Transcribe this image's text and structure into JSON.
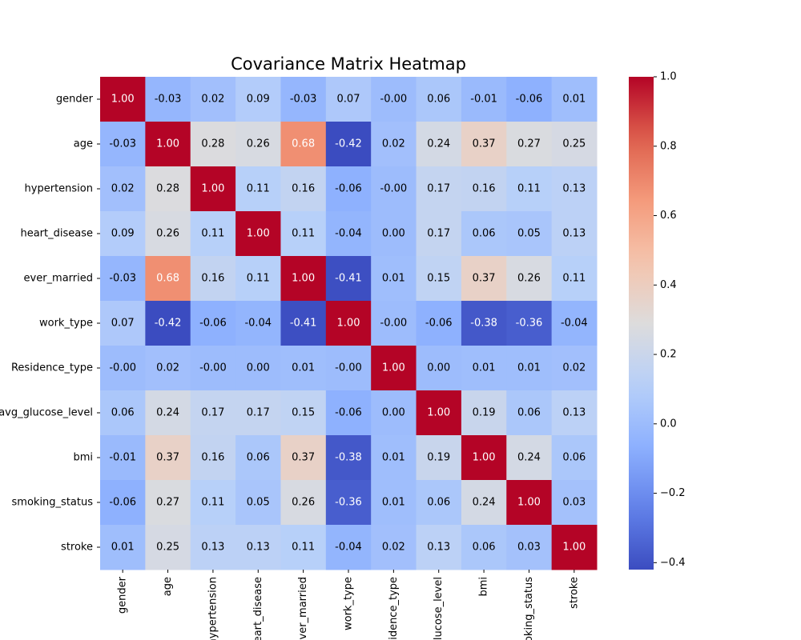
{
  "chart_data": {
    "type": "heatmap",
    "title": "Covariance Matrix Heatmap",
    "x_categories": [
      "gender",
      "age",
      "hypertension",
      "heart_disease",
      "ever_married",
      "work_type",
      "Residence_type",
      "avg_glucose_level",
      "bmi",
      "smoking_status",
      "stroke"
    ],
    "y_categories": [
      "gender",
      "age",
      "hypertension",
      "heart_disease",
      "ever_married",
      "work_type",
      "Residence_type",
      "avg_glucose_level",
      "bmi",
      "smoking_status",
      "stroke"
    ],
    "values": [
      [
        1.0,
        -0.03,
        0.02,
        0.09,
        -0.03,
        0.07,
        0,
        0.06,
        -0.01,
        -0.06,
        0.01
      ],
      [
        -0.03,
        1.0,
        0.28,
        0.26,
        0.68,
        -0.42,
        0.02,
        0.24,
        0.37,
        0.27,
        0.25
      ],
      [
        0.02,
        0.28,
        1.0,
        0.11,
        0.16,
        -0.06,
        0,
        0.17,
        0.16,
        0.11,
        0.13
      ],
      [
        0.09,
        0.26,
        0.11,
        1.0,
        0.11,
        -0.04,
        0,
        0.17,
        0.06,
        0.05,
        0.13
      ],
      [
        -0.03,
        0.68,
        0.16,
        0.11,
        1.0,
        -0.41,
        0.01,
        0.15,
        0.37,
        0.26,
        0.11
      ],
      [
        0.07,
        -0.42,
        -0.06,
        -0.04,
        -0.41,
        1.0,
        0,
        -0.06,
        -0.38,
        -0.36,
        -0.04
      ],
      [
        0,
        0.02,
        0,
        0,
        0.01,
        0,
        1.0,
        0,
        0.01,
        0.01,
        0.02
      ],
      [
        0.06,
        0.24,
        0.17,
        0.17,
        0.15,
        -0.06,
        0,
        1.0,
        0.19,
        0.06,
        0.13
      ],
      [
        -0.01,
        0.37,
        0.16,
        0.06,
        0.37,
        -0.38,
        0.01,
        0.19,
        1.0,
        0.24,
        0.06
      ],
      [
        -0.06,
        0.27,
        0.11,
        0.05,
        0.26,
        -0.36,
        0.01,
        0.06,
        0.24,
        1.0,
        0.03
      ],
      [
        0.01,
        0.25,
        0.13,
        0.13,
        0.11,
        -0.04,
        0.02,
        0.13,
        0.06,
        0.03,
        1.0
      ]
    ],
    "value_labels": [
      [
        "1.00",
        "-0.03",
        "0.02",
        "0.09",
        "-0.03",
        "0.07",
        "-0.00",
        "0.06",
        "-0.01",
        "-0.06",
        "0.01"
      ],
      [
        "-0.03",
        "1.00",
        "0.28",
        "0.26",
        "0.68",
        "-0.42",
        "0.02",
        "0.24",
        "0.37",
        "0.27",
        "0.25"
      ],
      [
        "0.02",
        "0.28",
        "1.00",
        "0.11",
        "0.16",
        "-0.06",
        "-0.00",
        "0.17",
        "0.16",
        "0.11",
        "0.13"
      ],
      [
        "0.09",
        "0.26",
        "0.11",
        "1.00",
        "0.11",
        "-0.04",
        "0.00",
        "0.17",
        "0.06",
        "0.05",
        "0.13"
      ],
      [
        "-0.03",
        "0.68",
        "0.16",
        "0.11",
        "1.00",
        "-0.41",
        "0.01",
        "0.15",
        "0.37",
        "0.26",
        "0.11"
      ],
      [
        "0.07",
        "-0.42",
        "-0.06",
        "-0.04",
        "-0.41",
        "1.00",
        "-0.00",
        "-0.06",
        "-0.38",
        "-0.36",
        "-0.04"
      ],
      [
        "-0.00",
        "0.02",
        "-0.00",
        "0.00",
        "0.01",
        "-0.00",
        "1.00",
        "0.00",
        "0.01",
        "0.01",
        "0.02"
      ],
      [
        "0.06",
        "0.24",
        "0.17",
        "0.17",
        "0.15",
        "-0.06",
        "0.00",
        "1.00",
        "0.19",
        "0.06",
        "0.13"
      ],
      [
        "-0.01",
        "0.37",
        "0.16",
        "0.06",
        "0.37",
        "-0.38",
        "0.01",
        "0.19",
        "1.00",
        "0.24",
        "0.06"
      ],
      [
        "-0.06",
        "0.27",
        "0.11",
        "0.05",
        "0.26",
        "-0.36",
        "0.01",
        "0.06",
        "0.24",
        "1.00",
        "0.03"
      ],
      [
        "0.01",
        "0.25",
        "0.13",
        "0.13",
        "0.11",
        "-0.04",
        "0.02",
        "0.13",
        "0.06",
        "0.03",
        "1.00"
      ]
    ],
    "colormap": "coolwarm",
    "zlim": [
      -0.42,
      1.0
    ],
    "zticks": [
      {
        "value": -0.4,
        "label": "−0.4"
      },
      {
        "value": -0.2,
        "label": "−0.2"
      },
      {
        "value": 0,
        "label": "0.0"
      },
      0.2,
      0.4,
      0.6,
      0.8,
      {
        "value": 1.0,
        "label": "1.0"
      }
    ]
  }
}
